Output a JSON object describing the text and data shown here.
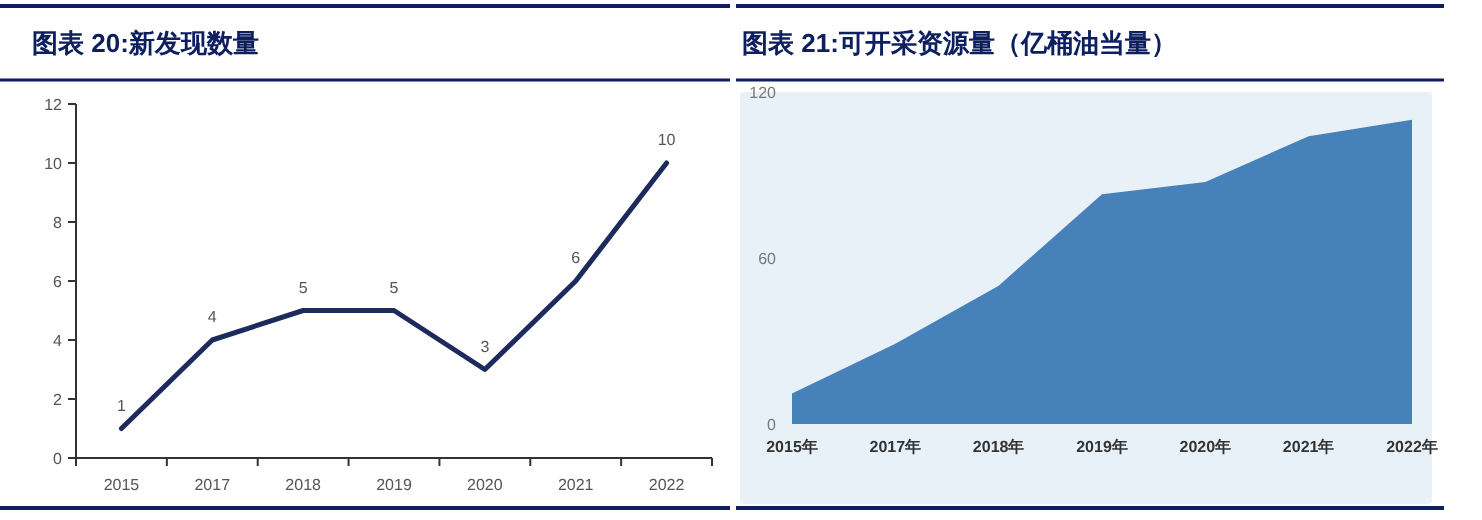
{
  "chart_data": [
    {
      "type": "line",
      "title": "图表 20:新发现数量",
      "categories": [
        "2015",
        "2017",
        "2018",
        "2019",
        "2020",
        "2021",
        "2022"
      ],
      "values": [
        1,
        4,
        5,
        5,
        3,
        6,
        10
      ],
      "color": "#1c2a5c",
      "ylim": [
        0,
        12
      ],
      "yticks": [
        0,
        2,
        4,
        6,
        8,
        10,
        12
      ],
      "data_labels": true
    },
    {
      "type": "area",
      "title": "图表 21:可开采资源量（亿桶油当量）",
      "categories": [
        "2015年",
        "2017年",
        "2018年",
        "2019年",
        "2020年",
        "2021年",
        "2022年"
      ],
      "values": [
        11,
        29,
        50,
        83,
        87.5,
        104,
        110
      ],
      "color": "#4781ba",
      "ylim": [
        0,
        120
      ],
      "yticks": [
        0,
        60,
        120
      ]
    }
  ]
}
